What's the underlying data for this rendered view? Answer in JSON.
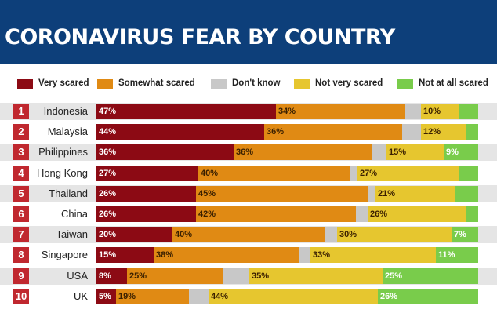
{
  "title": "CORONAVIRUS FEAR BY COUNTRY",
  "colors": {
    "header_bg": "#0d3f7a",
    "rank_badge": "#c0282f",
    "very_scared": "#8c0a14",
    "somewhat_scared": "#e08a14",
    "dont_know": "#c8c8c8",
    "not_very_scared": "#e6c62f",
    "not_at_all_scared": "#79cc4b"
  },
  "chart_data": {
    "type": "bar",
    "stacked": true,
    "orientation": "horizontal",
    "legend_position": "top",
    "series": [
      {
        "name": "Very scared",
        "color": "#8c0a14"
      },
      {
        "name": "Somewhat scared",
        "color": "#e08a14"
      },
      {
        "name": "Don't know",
        "color": "#c8c8c8"
      },
      {
        "name": "Not very scared",
        "color": "#e6c62f"
      },
      {
        "name": "Not at all scared",
        "color": "#79cc4b"
      }
    ],
    "rows": [
      {
        "rank": "1",
        "country": "Indonesia",
        "values": [
          47,
          34,
          4,
          10,
          5
        ],
        "labels": [
          "47%",
          "34%",
          "",
          "10%",
          ""
        ]
      },
      {
        "rank": "2",
        "country": "Malaysia",
        "values": [
          44,
          36,
          5,
          12,
          3
        ],
        "labels": [
          "44%",
          "36%",
          "",
          "12%",
          ""
        ]
      },
      {
        "rank": "3",
        "country": "Philippines",
        "values": [
          36,
          36,
          4,
          15,
          9
        ],
        "labels": [
          "36%",
          "36%",
          "",
          "15%",
          "9%"
        ]
      },
      {
        "rank": "4",
        "country": "Hong Kong",
        "values": [
          27,
          40,
          2,
          27,
          5
        ],
        "labels": [
          "27%",
          "40%",
          "",
          "27%",
          ""
        ]
      },
      {
        "rank": "5",
        "country": "Thailand",
        "values": [
          26,
          45,
          2,
          21,
          6
        ],
        "labels": [
          "26%",
          "45%",
          "",
          "21%",
          ""
        ]
      },
      {
        "rank": "6",
        "country": "China",
        "values": [
          26,
          42,
          3,
          26,
          3
        ],
        "labels": [
          "26%",
          "42%",
          "",
          "26%",
          ""
        ]
      },
      {
        "rank": "7",
        "country": "Taiwan",
        "values": [
          20,
          40,
          3,
          30,
          7
        ],
        "labels": [
          "20%",
          "40%",
          "",
          "30%",
          "7%"
        ]
      },
      {
        "rank": "8",
        "country": "Singapore",
        "values": [
          15,
          38,
          3,
          33,
          11
        ],
        "labels": [
          "15%",
          "38%",
          "",
          "33%",
          "11%"
        ]
      },
      {
        "rank": "9",
        "country": "USA",
        "values": [
          8,
          25,
          7,
          35,
          25
        ],
        "labels": [
          "8%",
          "25%",
          "",
          "35%",
          "25%"
        ]
      },
      {
        "rank": "10",
        "country": "UK",
        "values": [
          5,
          19,
          5,
          44,
          26
        ],
        "labels": [
          "5%",
          "19%",
          "",
          "44%",
          "26%"
        ]
      }
    ]
  }
}
